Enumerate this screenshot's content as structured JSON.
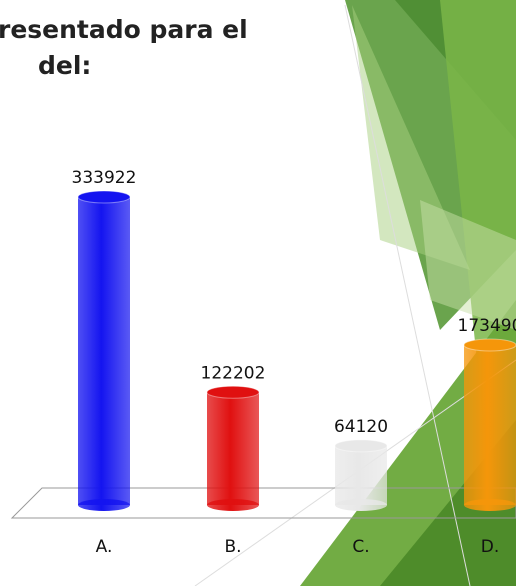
{
  "chart_data": {
    "type": "bar",
    "title_lines": [
      "resentado para el",
      "del:"
    ],
    "categories": [
      "A.",
      "B.",
      "C.",
      "D."
    ],
    "values": [
      333922,
      122202,
      64120,
      173490
    ],
    "colors": [
      "#1414f0",
      "#e01010",
      "#e8e8e8",
      "#f5960a"
    ]
  }
}
